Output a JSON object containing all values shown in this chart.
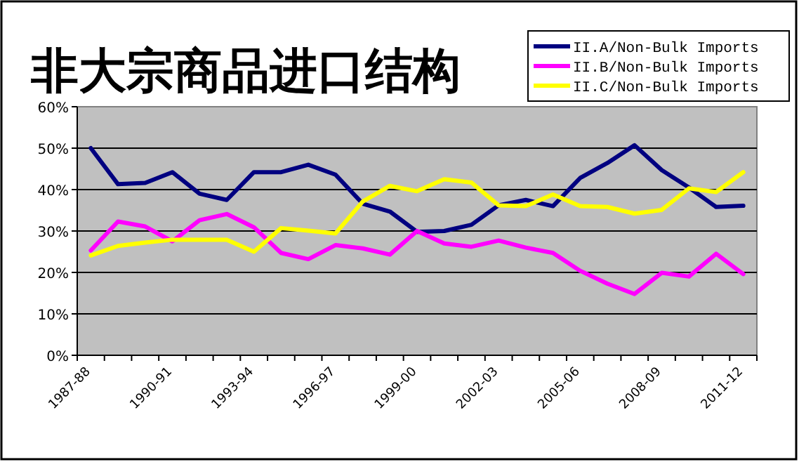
{
  "chart_data": {
    "type": "line",
    "title": "非大宗商品进口结构",
    "categories": [
      "1987-88",
      null,
      null,
      "1990-91",
      null,
      null,
      "1993-94",
      null,
      null,
      "1996-97",
      null,
      null,
      "1999-00",
      null,
      null,
      "2002-03",
      null,
      null,
      "2005-06",
      null,
      null,
      "2008-09",
      null,
      null,
      "2011-12"
    ],
    "series": [
      {
        "name": "II.A/Non-Bulk Imports",
        "color": "#000080",
        "values": [
          50,
          41.3,
          41.6,
          44.2,
          39,
          37.5,
          44.2,
          44.2,
          46,
          43.6,
          36.6,
          34.7,
          29.8,
          30,
          31.5,
          36.2,
          37.5,
          36,
          42.8,
          46.4,
          50.7,
          44.7,
          40.5,
          35.8,
          36.1
        ]
      },
      {
        "name": "II.B/Non-Bulk Imports",
        "color": "#ff00ff",
        "values": [
          25.3,
          32.3,
          31.1,
          27.5,
          32.6,
          34.1,
          30.9,
          24.7,
          23.2,
          26.6,
          25.8,
          24.3,
          30,
          27,
          26.2,
          27.7,
          26,
          24.7,
          20.4,
          17.3,
          14.8,
          19.9,
          19,
          24.5,
          19.6
        ]
      },
      {
        "name": "II.C/Non-Bulk Imports",
        "color": "#ffff00",
        "values": [
          24.1,
          26.4,
          27.2,
          27.9,
          27.9,
          27.9,
          25,
          30.7,
          30.1,
          29.4,
          37.1,
          40.9,
          39.6,
          42.5,
          41.7,
          36.2,
          36,
          38.8,
          36,
          35.8,
          34.2,
          35.1,
          40.3,
          39.4,
          44.2
        ]
      }
    ],
    "ylim": [
      0,
      60
    ],
    "yticks": [
      {
        "value": 0,
        "label": "0%"
      },
      {
        "value": 10,
        "label": "10%"
      },
      {
        "value": 20,
        "label": "20%"
      },
      {
        "value": 30,
        "label": "30%"
      },
      {
        "value": 40,
        "label": "40%"
      },
      {
        "value": 50,
        "label": "50%"
      },
      {
        "value": 60,
        "label": "60%"
      }
    ],
    "grid": "y",
    "legend": "top right",
    "marker": "none",
    "line_style": "solid"
  }
}
